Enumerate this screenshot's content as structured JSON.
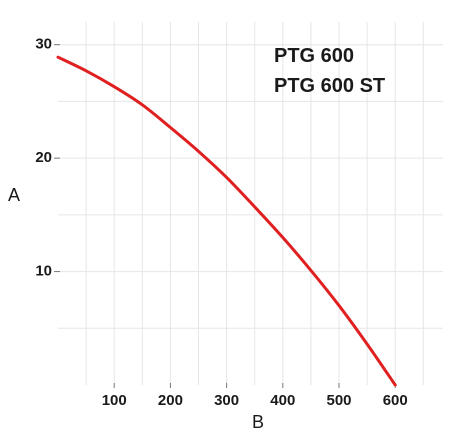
{
  "chart_data": {
    "type": "line",
    "xlabel": "B",
    "ylabel": "A",
    "xlim": [
      0,
      685
    ],
    "ylim": [
      0,
      32
    ],
    "x_ticks": [
      100,
      200,
      300,
      400,
      500,
      600
    ],
    "y_ticks": [
      10,
      20,
      30
    ],
    "grid": true,
    "annotations": [
      "PTG 600",
      "PTG 600 ST"
    ],
    "series": [
      {
        "color": "#e02020",
        "x": [
          0,
          50,
          100,
          150,
          200,
          250,
          300,
          350,
          400,
          450,
          500,
          550,
          600
        ],
        "y": [
          28.9,
          27.7,
          26.3,
          24.7,
          22.7,
          20.6,
          18.3,
          15.7,
          13.0,
          10.1,
          7.0,
          3.6,
          0.0
        ]
      }
    ]
  }
}
